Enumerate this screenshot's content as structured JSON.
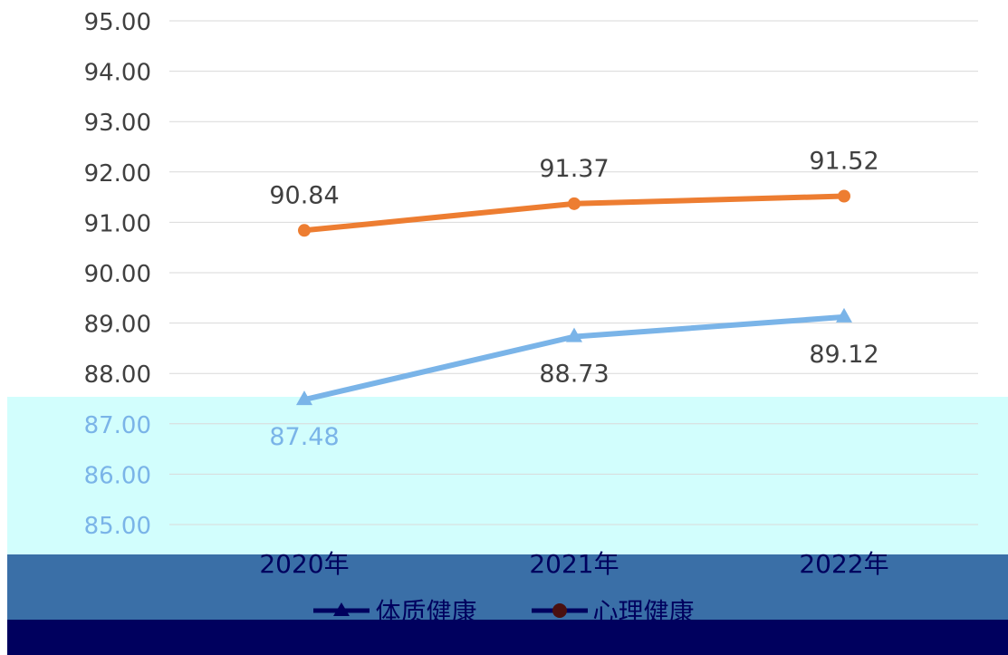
{
  "chart_data": {
    "type": "line",
    "categories": [
      "2020年",
      "2021年",
      "2022年"
    ],
    "series": [
      {
        "name": "体质健康",
        "values": [
          87.48,
          88.73,
          89.12
        ],
        "color": "#7ab4e8",
        "marker": "triangle"
      },
      {
        "name": "心理健康",
        "values": [
          90.84,
          91.37,
          91.52
        ],
        "color": "#ed7d31",
        "marker": "circle"
      }
    ],
    "ylim": [
      85,
      95
    ],
    "yticks": [
      "85.00",
      "86.00",
      "87.00",
      "88.00",
      "89.00",
      "90.00",
      "91.00",
      "92.00",
      "93.00",
      "94.00",
      "95.00"
    ],
    "grid": true,
    "legend_position": "bottom",
    "data_labels": {
      "体质健康": [
        "87.48",
        "88.73",
        "89.12"
      ],
      "心理健康": [
        "90.84",
        "91.37",
        "91.52"
      ]
    }
  },
  "legend": {
    "series1_label": "体质健康",
    "series2_label": "心理健康"
  }
}
